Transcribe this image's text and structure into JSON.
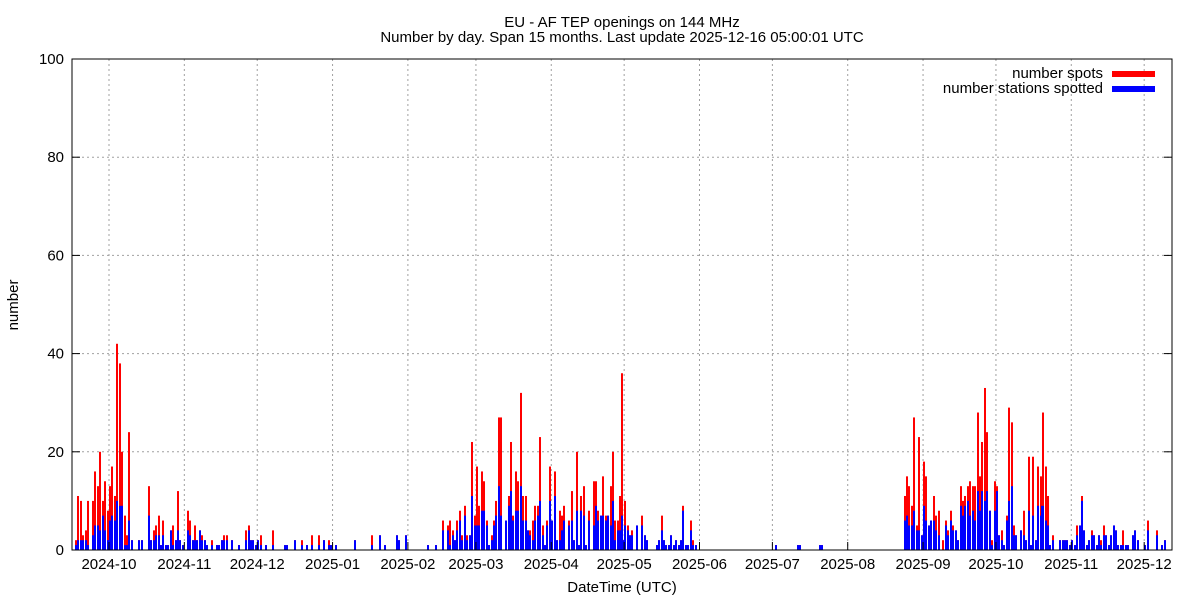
{
  "chart_data": {
    "type": "bar",
    "title": "EU - AF TEP openings on 144 MHz",
    "subtitle": "Number by day. Span 15 months. Last update 2025-12-16 05:00:01 UTC",
    "xlabel": "DateTime (UTC)",
    "ylabel": "number",
    "ylim": [
      0,
      100
    ],
    "yticks": [
      0,
      20,
      40,
      60,
      80,
      100
    ],
    "x_origin": "2024-10-01",
    "x_unit": "days since x_origin",
    "xlim_days": [
      -15,
      437
    ],
    "xticks": [
      {
        "label": "2024-10",
        "day": 0
      },
      {
        "label": "2024-11",
        "day": 31
      },
      {
        "label": "2024-12",
        "day": 61
      },
      {
        "label": "2025-01",
        "day": 92
      },
      {
        "label": "2025-02",
        "day": 123
      },
      {
        "label": "2025-03",
        "day": 151
      },
      {
        "label": "2025-04",
        "day": 182
      },
      {
        "label": "2025-05",
        "day": 212
      },
      {
        "label": "2025-06",
        "day": 243
      },
      {
        "label": "2025-07",
        "day": 273
      },
      {
        "label": "2025-08",
        "day": 304
      },
      {
        "label": "2025-09",
        "day": 335
      },
      {
        "label": "2025-10",
        "day": 365
      },
      {
        "label": "2025-11",
        "day": 396
      },
      {
        "label": "2025-12",
        "day": 426
      }
    ],
    "grid": true,
    "legend_position": "top-right",
    "series": [
      {
        "name": "number spots",
        "color": "#ff0000",
        "field": 1
      },
      {
        "name": "number stations spotted",
        "color": "#0000ff",
        "field": 2
      }
    ],
    "points_format": [
      "day",
      "spots",
      "stations"
    ],
    "points": [
      [
        -14,
        2,
        1
      ],
      [
        -13,
        11,
        2
      ],
      [
        -12,
        10,
        2
      ],
      [
        -11,
        3,
        2
      ],
      [
        -10,
        4,
        2
      ],
      [
        -9,
        10,
        1
      ],
      [
        -7,
        10,
        3
      ],
      [
        -6,
        16,
        5
      ],
      [
        -5,
        13,
        5
      ],
      [
        -4,
        20,
        4
      ],
      [
        -3,
        10,
        7
      ],
      [
        -2,
        14,
        4
      ],
      [
        -1,
        8,
        2
      ],
      [
        0,
        13,
        6
      ],
      [
        1,
        17,
        7
      ],
      [
        2,
        11,
        6
      ],
      [
        3,
        42,
        10
      ],
      [
        4,
        38,
        9
      ],
      [
        5,
        20,
        9
      ],
      [
        6,
        7,
        1
      ],
      [
        7,
        3,
        1
      ],
      [
        8,
        24,
        6
      ],
      [
        9,
        2,
        2
      ],
      [
        12,
        2,
        2
      ],
      [
        13,
        2,
        2
      ],
      [
        16,
        13,
        7
      ],
      [
        17,
        2,
        2
      ],
      [
        18,
        4,
        2
      ],
      [
        19,
        5,
        3
      ],
      [
        20,
        7,
        3
      ],
      [
        21,
        1,
        1
      ],
      [
        22,
        6,
        3
      ],
      [
        23,
        1,
        1
      ],
      [
        24,
        1,
        1
      ],
      [
        25,
        4,
        4
      ],
      [
        26,
        5,
        1
      ],
      [
        27,
        2,
        2
      ],
      [
        28,
        12,
        4
      ],
      [
        29,
        2,
        2
      ],
      [
        30,
        1,
        1
      ],
      [
        32,
        8,
        4
      ],
      [
        33,
        6,
        3
      ],
      [
        34,
        2,
        2
      ],
      [
        35,
        5,
        2
      ],
      [
        36,
        2,
        2
      ],
      [
        37,
        4,
        4
      ],
      [
        38,
        3,
        2
      ],
      [
        39,
        2,
        2
      ],
      [
        40,
        1,
        1
      ],
      [
        42,
        2,
        1
      ],
      [
        44,
        1,
        1
      ],
      [
        45,
        1,
        1
      ],
      [
        46,
        2,
        2
      ],
      [
        47,
        3,
        2
      ],
      [
        48,
        3,
        2
      ],
      [
        50,
        2,
        2
      ],
      [
        53,
        1,
        1
      ],
      [
        56,
        4,
        2
      ],
      [
        57,
        5,
        4
      ],
      [
        58,
        2,
        2
      ],
      [
        59,
        2,
        2
      ],
      [
        60,
        1,
        1
      ],
      [
        61,
        2,
        2
      ],
      [
        62,
        3,
        1
      ],
      [
        64,
        1,
        1
      ],
      [
        67,
        4,
        1
      ],
      [
        72,
        1,
        1
      ],
      [
        73,
        1,
        1
      ],
      [
        76,
        2,
        2
      ],
      [
        79,
        2,
        1
      ],
      [
        81,
        1,
        1
      ],
      [
        83,
        3,
        1
      ],
      [
        86,
        3,
        1
      ],
      [
        88,
        2,
        2
      ],
      [
        90,
        2,
        1
      ],
      [
        91,
        1,
        1
      ],
      [
        93,
        1,
        1
      ],
      [
        101,
        2,
        2
      ],
      [
        108,
        3,
        1
      ],
      [
        111,
        3,
        3
      ],
      [
        113,
        1,
        1
      ],
      [
        118,
        3,
        3
      ],
      [
        119,
        2,
        2
      ],
      [
        122,
        3,
        3
      ],
      [
        131,
        1,
        1
      ],
      [
        134,
        1,
        1
      ],
      [
        137,
        6,
        4
      ],
      [
        139,
        5,
        4
      ],
      [
        140,
        6,
        1
      ],
      [
        141,
        4,
        3
      ],
      [
        142,
        2,
        2
      ],
      [
        143,
        6,
        4
      ],
      [
        144,
        8,
        6
      ],
      [
        145,
        3,
        2
      ],
      [
        146,
        9,
        7
      ],
      [
        147,
        3,
        2
      ],
      [
        148,
        3,
        3
      ],
      [
        149,
        22,
        11
      ],
      [
        150,
        7,
        5
      ],
      [
        151,
        17,
        5
      ],
      [
        152,
        9,
        5
      ],
      [
        153,
        16,
        8
      ],
      [
        154,
        14,
        8
      ],
      [
        155,
        6,
        5
      ],
      [
        156,
        1,
        1
      ],
      [
        157,
        3,
        2
      ],
      [
        158,
        6,
        5
      ],
      [
        159,
        10,
        7
      ],
      [
        160,
        27,
        13
      ],
      [
        161,
        27,
        7
      ],
      [
        163,
        6,
        6
      ],
      [
        164,
        11,
        9
      ],
      [
        165,
        22,
        12
      ],
      [
        166,
        7,
        6
      ],
      [
        167,
        16,
        8
      ],
      [
        168,
        14,
        8
      ],
      [
        169,
        32,
        13
      ],
      [
        170,
        11,
        6
      ],
      [
        171,
        11,
        6
      ],
      [
        172,
        4,
        4
      ],
      [
        173,
        4,
        3
      ],
      [
        174,
        6,
        2
      ],
      [
        175,
        9,
        6
      ],
      [
        176,
        9,
        7
      ],
      [
        177,
        23,
        10
      ],
      [
        178,
        5,
        3
      ],
      [
        179,
        1,
        1
      ],
      [
        180,
        6,
        5
      ],
      [
        181,
        17,
        10
      ],
      [
        182,
        6,
        6
      ],
      [
        183,
        16,
        11
      ],
      [
        184,
        2,
        2
      ],
      [
        185,
        8,
        2
      ],
      [
        186,
        7,
        4
      ],
      [
        187,
        9,
        6
      ],
      [
        189,
        6,
        5
      ],
      [
        190,
        12,
        6
      ],
      [
        191,
        2,
        2
      ],
      [
        192,
        20,
        8
      ],
      [
        193,
        1,
        1
      ],
      [
        194,
        11,
        8
      ],
      [
        195,
        13,
        7
      ],
      [
        196,
        1,
        1
      ],
      [
        197,
        8,
        6
      ],
      [
        199,
        14,
        5
      ],
      [
        200,
        14,
        9
      ],
      [
        201,
        8,
        6
      ],
      [
        202,
        7,
        7
      ],
      [
        203,
        15,
        7
      ],
      [
        204,
        7,
        6
      ],
      [
        205,
        7,
        7
      ],
      [
        206,
        13,
        5
      ],
      [
        207,
        20,
        10
      ],
      [
        208,
        6,
        2
      ],
      [
        209,
        6,
        4
      ],
      [
        210,
        11,
        4
      ],
      [
        210.5,
        36,
        7
      ],
      [
        211,
        2,
        2
      ],
      [
        212,
        10,
        5
      ],
      [
        213,
        5,
        4
      ],
      [
        214,
        3,
        3
      ],
      [
        215,
        4,
        3
      ],
      [
        217,
        5,
        5
      ],
      [
        219,
        7,
        5
      ],
      [
        220,
        3,
        3
      ],
      [
        221,
        2,
        2
      ],
      [
        225,
        1,
        1
      ],
      [
        226,
        2,
        2
      ],
      [
        227,
        7,
        4
      ],
      [
        228,
        2,
        2
      ],
      [
        229,
        1,
        1
      ],
      [
        230,
        1,
        1
      ],
      [
        231,
        3,
        3
      ],
      [
        232,
        1,
        1
      ],
      [
        233,
        2,
        2
      ],
      [
        234,
        1,
        1
      ],
      [
        235,
        2,
        2
      ],
      [
        236,
        9,
        8
      ],
      [
        237,
        1,
        1
      ],
      [
        238,
        1,
        1
      ],
      [
        239,
        6,
        4
      ],
      [
        240,
        2,
        1
      ],
      [
        241,
        1,
        1
      ],
      [
        274,
        1,
        1
      ],
      [
        283,
        1,
        1
      ],
      [
        284,
        1,
        1
      ],
      [
        292,
        1,
        1
      ],
      [
        293,
        1,
        1
      ],
      [
        327,
        11,
        6
      ],
      [
        328,
        15,
        7
      ],
      [
        329,
        13,
        5
      ],
      [
        330,
        9,
        5
      ],
      [
        331,
        27,
        8
      ],
      [
        332,
        5,
        4
      ],
      [
        333,
        23,
        4
      ],
      [
        334,
        3,
        3
      ],
      [
        335,
        18,
        9
      ],
      [
        336,
        15,
        6
      ],
      [
        337,
        5,
        5
      ],
      [
        338,
        6,
        6
      ],
      [
        339,
        11,
        6
      ],
      [
        340,
        7,
        4
      ],
      [
        341,
        8,
        3
      ],
      [
        343,
        2,
        0
      ],
      [
        344,
        6,
        5
      ],
      [
        345,
        4,
        3
      ],
      [
        346,
        8,
        6
      ],
      [
        347,
        5,
        4
      ],
      [
        348,
        4,
        4
      ],
      [
        349,
        2,
        2
      ],
      [
        350,
        13,
        9
      ],
      [
        351,
        10,
        7
      ],
      [
        352,
        11,
        9
      ],
      [
        353,
        13,
        10
      ],
      [
        354,
        14,
        7
      ],
      [
        355,
        13,
        8
      ],
      [
        356,
        13,
        6
      ],
      [
        357,
        28,
        12
      ],
      [
        358,
        15,
        8
      ],
      [
        359,
        22,
        12
      ],
      [
        360,
        33,
        10
      ],
      [
        361,
        24,
        12
      ],
      [
        362,
        8,
        8
      ],
      [
        363,
        2,
        1
      ],
      [
        364,
        14,
        8
      ],
      [
        365,
        13,
        12
      ],
      [
        366,
        3,
        3
      ],
      [
        367,
        4,
        2
      ],
      [
        368,
        1,
        1
      ],
      [
        369,
        7,
        6
      ],
      [
        370,
        29,
        10
      ],
      [
        371,
        26,
        13
      ],
      [
        372,
        5,
        3
      ],
      [
        373,
        3,
        3
      ],
      [
        375,
        4,
        4
      ],
      [
        376,
        8,
        3
      ],
      [
        377,
        2,
        2
      ],
      [
        378,
        19,
        8
      ],
      [
        379,
        1,
        1
      ],
      [
        380,
        19,
        7
      ],
      [
        381,
        2,
        2
      ],
      [
        382,
        17,
        9
      ],
      [
        383,
        15,
        7
      ],
      [
        383.6,
        9,
        9
      ],
      [
        384,
        28,
        9
      ],
      [
        385,
        17,
        6
      ],
      [
        386,
        11,
        5
      ],
      [
        387,
        1,
        1
      ],
      [
        388,
        3,
        2
      ],
      [
        391,
        2,
        2
      ],
      [
        392,
        2,
        2
      ],
      [
        393,
        2,
        2
      ],
      [
        394,
        2,
        2
      ],
      [
        395,
        1,
        1
      ],
      [
        396,
        2,
        2
      ],
      [
        397,
        1,
        1
      ],
      [
        398,
        5,
        3
      ],
      [
        399,
        5,
        5
      ],
      [
        400,
        11,
        10
      ],
      [
        401,
        4,
        4
      ],
      [
        402,
        1,
        1
      ],
      [
        403,
        2,
        2
      ],
      [
        404,
        4,
        3
      ],
      [
        405,
        3,
        3
      ],
      [
        406,
        1,
        1
      ],
      [
        407,
        3,
        3
      ],
      [
        408,
        2,
        1
      ],
      [
        409,
        5,
        3
      ],
      [
        409.6,
        1,
        1
      ],
      [
        410,
        3,
        3
      ],
      [
        411,
        1,
        1
      ],
      [
        412,
        3,
        3
      ],
      [
        413,
        5,
        5
      ],
      [
        414,
        4,
        4
      ],
      [
        415,
        1,
        1
      ],
      [
        416,
        1,
        1
      ],
      [
        417,
        4,
        1
      ],
      [
        418,
        1,
        1
      ],
      [
        419,
        1,
        1
      ],
      [
        421,
        3,
        3
      ],
      [
        422,
        4,
        4
      ],
      [
        423,
        2,
        2
      ],
      [
        426,
        1,
        1
      ],
      [
        427,
        6,
        4
      ],
      [
        431,
        4,
        3
      ],
      [
        433,
        1,
        1
      ],
      [
        434,
        2,
        2
      ]
    ]
  }
}
